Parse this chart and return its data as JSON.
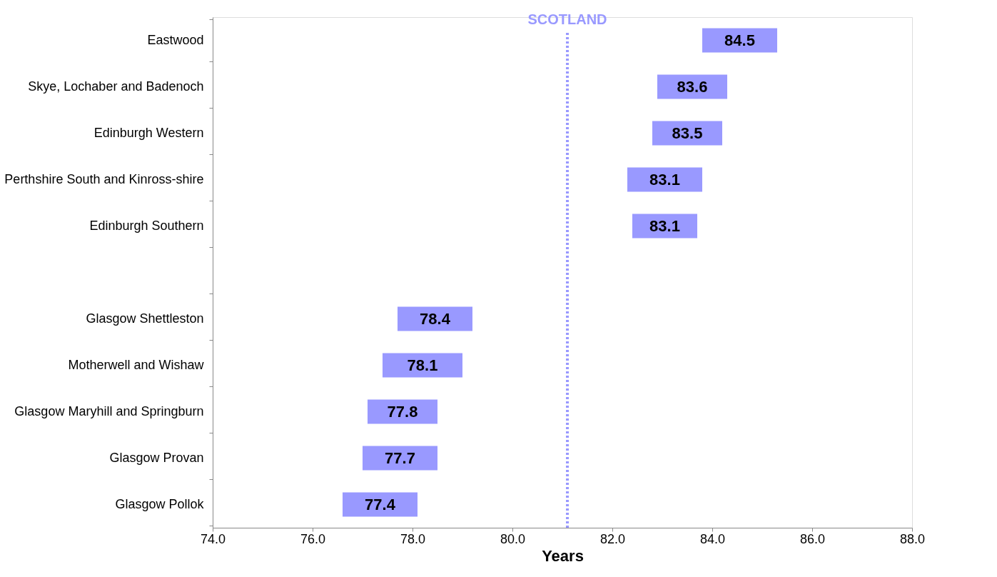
{
  "chart_data": {
    "type": "bar",
    "orientation": "horizontal",
    "xlabel": "Years",
    "categories": [
      "Eastwood",
      "Skye, Lochaber and Badenoch",
      "Edinburgh Western",
      "Perthshire South and Kinross-shire",
      "Edinburgh Southern",
      null,
      "Glasgow Shettleston",
      "Motherwell and Wishaw",
      "Glasgow Maryhill and Springburn",
      "Glasgow Provan",
      "Glasgow Pollok"
    ],
    "base": [
      83.8,
      82.9,
      82.8,
      82.3,
      82.4,
      null,
      77.7,
      77.4,
      77.1,
      77.0,
      76.6
    ],
    "values": [
      1.5,
      1.4,
      1.4,
      1.5,
      1.3,
      null,
      1.5,
      1.6,
      1.4,
      1.5,
      1.5
    ],
    "annotations": [
      "84.5",
      "83.6",
      "83.5",
      "83.1",
      "83.1",
      "78.4",
      "78.1",
      "77.8",
      "77.7",
      "77.4"
    ],
    "color": "#9999ff",
    "xlim": [
      74,
      88
    ],
    "xticks": [
      {
        "value": 74,
        "label": "74.0"
      },
      {
        "value": 76,
        "label": "76.0"
      },
      {
        "value": 78,
        "label": "78.0"
      },
      {
        "value": 80,
        "label": "80.0"
      },
      {
        "value": 82,
        "label": "82.0"
      },
      {
        "value": 84,
        "label": "84.0"
      },
      {
        "value": 86,
        "label": "86.0"
      },
      {
        "value": 88,
        "label": "88.0"
      }
    ],
    "ref_lines": [
      {
        "axis": "x",
        "value": 81.1,
        "label": "SCOTLAND",
        "color": "#9999ff",
        "line_style": "dotted"
      }
    ],
    "grid": false
  }
}
